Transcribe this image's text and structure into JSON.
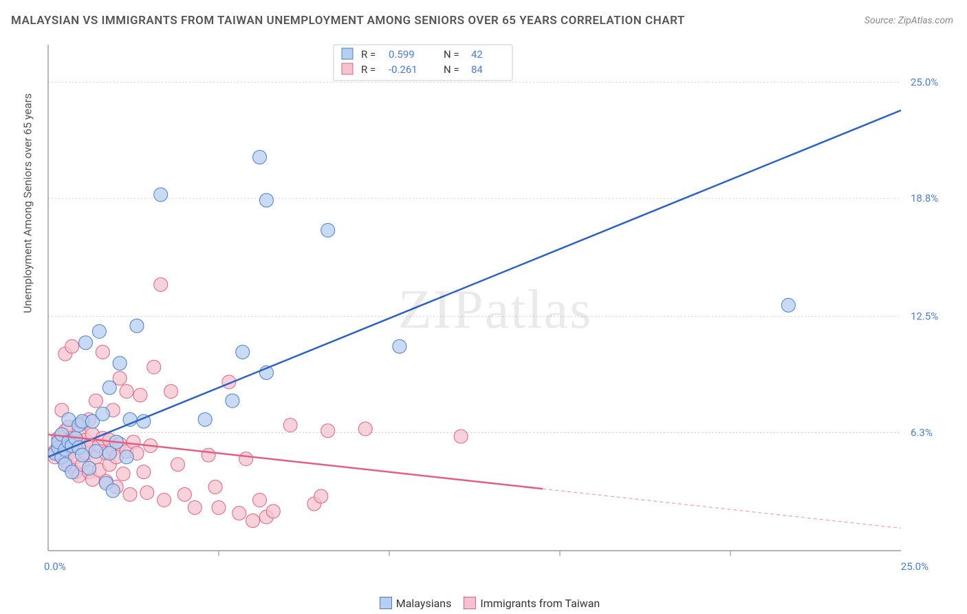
{
  "title": "MALAYSIAN VS IMMIGRANTS FROM TAIWAN UNEMPLOYMENT AMONG SENIORS OVER 65 YEARS CORRELATION CHART",
  "source_label": "Source: ZipAtlas.com",
  "ylabel": "Unemployment Among Seniors over 65 years",
  "watermark": "ZIPatlas",
  "chart": {
    "type": "scatter-with-trend",
    "background_color": "#ffffff",
    "grid_color": "#d0d0d0",
    "axis_color": "#888888",
    "x": {
      "min": 0.0,
      "max": 25.0,
      "unit": "%",
      "origin_label": "0.0%",
      "end_label": "25.0%",
      "label_color": "#4a7cc9"
    },
    "y": {
      "min": 0.0,
      "max": 27.0,
      "ticks": [
        6.3,
        12.5,
        18.8,
        25.0
      ],
      "unit": "%",
      "label_color": "#4a7cc9"
    },
    "series": [
      {
        "name": "Malaysians",
        "marker_color_fill": "#b6cef0",
        "marker_color_stroke": "#4a7cc9",
        "marker_opacity": 0.75,
        "marker_radius": 10,
        "trend_color": "#2b63c0",
        "r": 0.599,
        "n": 42,
        "trend": {
          "x0": 0.0,
          "y0": 5.0,
          "x1_solid": 25.0,
          "y1_solid": 23.5
        },
        "points": [
          [
            0.2,
            5.2
          ],
          [
            0.3,
            5.5
          ],
          [
            0.3,
            5.8
          ],
          [
            0.4,
            5.0
          ],
          [
            0.4,
            6.2
          ],
          [
            0.5,
            5.4
          ],
          [
            0.5,
            4.6
          ],
          [
            0.6,
            7.0
          ],
          [
            0.6,
            5.8
          ],
          [
            0.7,
            5.6
          ],
          [
            0.7,
            4.2
          ],
          [
            0.8,
            6.0
          ],
          [
            0.9,
            5.5
          ],
          [
            0.9,
            6.7
          ],
          [
            1.0,
            6.9
          ],
          [
            1.0,
            5.1
          ],
          [
            1.1,
            11.1
          ],
          [
            1.2,
            4.4
          ],
          [
            1.3,
            6.9
          ],
          [
            1.4,
            5.3
          ],
          [
            1.5,
            11.7
          ],
          [
            1.6,
            7.3
          ],
          [
            1.7,
            3.6
          ],
          [
            1.8,
            5.2
          ],
          [
            1.8,
            8.7
          ],
          [
            1.9,
            3.2
          ],
          [
            2.0,
            5.8
          ],
          [
            2.1,
            10.0
          ],
          [
            2.3,
            5.0
          ],
          [
            2.4,
            7.0
          ],
          [
            2.6,
            12.0
          ],
          [
            2.8,
            6.9
          ],
          [
            3.3,
            19.0
          ],
          [
            4.6,
            7.0
          ],
          [
            5.4,
            8.0
          ],
          [
            5.7,
            10.6
          ],
          [
            6.2,
            21.0
          ],
          [
            6.4,
            9.5
          ],
          [
            6.4,
            18.7
          ],
          [
            8.2,
            17.1
          ],
          [
            10.3,
            10.9
          ],
          [
            21.7,
            13.1
          ]
        ]
      },
      {
        "name": "Immigrants from Taiwan",
        "marker_color_fill": "#f4c3cf",
        "marker_color_stroke": "#e05f82",
        "marker_opacity": 0.75,
        "marker_radius": 10,
        "trend_color": "#e05f82",
        "r": -0.261,
        "n": 84,
        "trend": {
          "x0": 0.0,
          "y0": 6.2,
          "x1_solid": 14.5,
          "y1_solid": 3.3,
          "x1_dash": 25.0,
          "y1_dash": 1.2
        },
        "points": [
          [
            0.2,
            5.0
          ],
          [
            0.2,
            5.3
          ],
          [
            0.3,
            5.6
          ],
          [
            0.3,
            6.0
          ],
          [
            0.3,
            5.8
          ],
          [
            0.4,
            5.4
          ],
          [
            0.4,
            7.5
          ],
          [
            0.4,
            5.0
          ],
          [
            0.5,
            5.8
          ],
          [
            0.5,
            4.8
          ],
          [
            0.5,
            6.4
          ],
          [
            0.5,
            10.5
          ],
          [
            0.6,
            5.2
          ],
          [
            0.6,
            5.9
          ],
          [
            0.6,
            6.6
          ],
          [
            0.6,
            4.5
          ],
          [
            0.7,
            5.5
          ],
          [
            0.7,
            10.9
          ],
          [
            0.7,
            6.0
          ],
          [
            0.8,
            5.0
          ],
          [
            0.8,
            5.7
          ],
          [
            0.8,
            4.2
          ],
          [
            0.9,
            6.3
          ],
          [
            0.9,
            5.8
          ],
          [
            0.9,
            4.0
          ],
          [
            1.0,
            5.4
          ],
          [
            1.0,
            6.8
          ],
          [
            1.0,
            4.6
          ],
          [
            1.1,
            5.2
          ],
          [
            1.1,
            5.9
          ],
          [
            1.2,
            7.0
          ],
          [
            1.2,
            4.2
          ],
          [
            1.2,
            5.6
          ],
          [
            1.3,
            3.8
          ],
          [
            1.3,
            6.2
          ],
          [
            1.4,
            5.0
          ],
          [
            1.4,
            8.0
          ],
          [
            1.5,
            5.6
          ],
          [
            1.5,
            4.3
          ],
          [
            1.6,
            6.0
          ],
          [
            1.6,
            10.6
          ],
          [
            1.7,
            5.2
          ],
          [
            1.7,
            3.7
          ],
          [
            1.8,
            5.9
          ],
          [
            1.8,
            4.6
          ],
          [
            1.9,
            5.4
          ],
          [
            1.9,
            7.5
          ],
          [
            2.0,
            5.0
          ],
          [
            2.0,
            3.4
          ],
          [
            2.1,
            5.7
          ],
          [
            2.1,
            9.2
          ],
          [
            2.2,
            4.1
          ],
          [
            2.3,
            5.3
          ],
          [
            2.3,
            8.5
          ],
          [
            2.4,
            3.0
          ],
          [
            2.5,
            5.8
          ],
          [
            2.6,
            5.2
          ],
          [
            2.7,
            8.3
          ],
          [
            2.8,
            4.2
          ],
          [
            2.9,
            3.1
          ],
          [
            3.0,
            5.6
          ],
          [
            3.1,
            9.8
          ],
          [
            3.3,
            14.2
          ],
          [
            3.4,
            2.7
          ],
          [
            3.6,
            8.5
          ],
          [
            3.8,
            4.6
          ],
          [
            4.0,
            3.0
          ],
          [
            4.3,
            2.3
          ],
          [
            4.7,
            5.1
          ],
          [
            4.9,
            3.4
          ],
          [
            5.0,
            2.3
          ],
          [
            5.3,
            9.0
          ],
          [
            5.6,
            2.0
          ],
          [
            5.8,
            4.9
          ],
          [
            6.0,
            1.6
          ],
          [
            6.2,
            2.7
          ],
          [
            6.4,
            1.8
          ],
          [
            6.6,
            2.1
          ],
          [
            7.1,
            6.7
          ],
          [
            7.8,
            2.5
          ],
          [
            8.0,
            2.9
          ],
          [
            8.2,
            6.4
          ],
          [
            9.3,
            6.5
          ],
          [
            12.1,
            6.1
          ]
        ]
      }
    ],
    "top_legend": {
      "rows": [
        {
          "series_index": 0,
          "r_label": "R =",
          "n_label": "N ="
        },
        {
          "series_index": 1,
          "r_label": "R =",
          "n_label": "N ="
        }
      ]
    },
    "bottom_legend": true
  }
}
